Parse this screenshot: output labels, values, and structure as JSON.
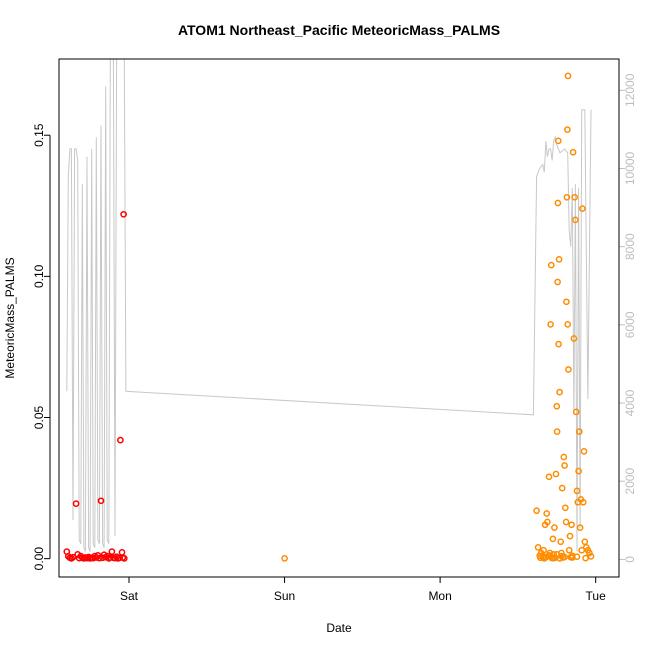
{
  "chart_data": {
    "type": "scatter",
    "title": "ATOM1 Northeast_Pacific MeteoricMass_PALMS",
    "xlabel": "Date",
    "ylabel": "MeteoricMass_PALMS",
    "x_ticks": [
      "Sat",
      "Sun",
      "Mon",
      "Tue"
    ],
    "x_range_days": [
      -0.45,
      3.15
    ],
    "ylim": [
      -0.0065,
      0.177
    ],
    "y_ticks": [
      "0.00",
      "0.05",
      "0.10",
      "0.15"
    ],
    "y_tick_values": [
      0,
      0.05,
      0.1,
      0.15
    ],
    "y2lim": [
      -450,
      12800
    ],
    "y2_ticks": [
      "0",
      "2000",
      "4000",
      "6000",
      "8000",
      "10000",
      "12000"
    ],
    "y2_tick_values": [
      0,
      2000,
      4000,
      6000,
      8000,
      10000,
      12000
    ],
    "grid": false,
    "series": [
      {
        "color": "#ff0000",
        "points": [
          [
            -0.4,
            0.0025
          ],
          [
            -0.39,
            0.0008
          ],
          [
            -0.38,
            0.0003
          ],
          [
            -0.37,
            0.0001
          ],
          [
            -0.36,
            0.0005
          ],
          [
            -0.34,
            0.0195
          ],
          [
            -0.33,
            0.0015
          ],
          [
            -0.32,
            0.0002
          ],
          [
            -0.31,
            0.0009
          ],
          [
            -0.3,
            0.0003
          ],
          [
            -0.29,
            0.0001
          ],
          [
            -0.28,
            0.0004
          ],
          [
            -0.27,
            0.0002
          ],
          [
            -0.26,
            0.0006
          ],
          [
            -0.25,
            0.0001
          ],
          [
            -0.24,
            0.0003
          ],
          [
            -0.23,
            0.0002
          ],
          [
            -0.22,
            0.0009
          ],
          [
            -0.21,
            0.0004
          ],
          [
            -0.2,
            0.0012
          ],
          [
            -0.19,
            0.0002
          ],
          [
            -0.18,
            0.0205
          ],
          [
            -0.17,
            0.0003
          ],
          [
            -0.16,
            0.0014
          ],
          [
            -0.15,
            0.0005
          ],
          [
            -0.14,
            0.0009
          ],
          [
            -0.13,
            0.0001
          ],
          [
            -0.12,
            0.0004
          ],
          [
            -0.11,
            0.0025
          ],
          [
            -0.1,
            0.0003
          ],
          [
            -0.09,
            0.0002
          ],
          [
            -0.08,
            0.0007
          ],
          [
            -0.07,
            0.0001
          ],
          [
            -0.06,
            0.0003
          ],
          [
            -0.055,
            0.042
          ],
          [
            -0.045,
            0.0022
          ],
          [
            -0.04,
            0.0004
          ],
          [
            -0.035,
            0.122
          ],
          [
            -0.03,
            0.0001
          ]
        ]
      },
      {
        "color": "#ff8c00",
        "points": [
          [
            1.0,
            0.0001
          ],
          [
            2.62,
            0.017
          ],
          [
            2.63,
            0.004
          ],
          [
            2.64,
            0.001
          ],
          [
            2.645,
            0.0003
          ],
          [
            2.65,
            0.002
          ],
          [
            2.66,
            0.0006
          ],
          [
            2.665,
            0.003
          ],
          [
            2.67,
            0.0001
          ],
          [
            2.675,
            0.012
          ],
          [
            2.68,
            0.0005
          ],
          [
            2.685,
            0.016
          ],
          [
            2.69,
            0.013
          ],
          [
            2.695,
            0.0009
          ],
          [
            2.7,
            0.029
          ],
          [
            2.705,
            0.002
          ],
          [
            2.71,
            0.083
          ],
          [
            2.715,
            0.104
          ],
          [
            2.72,
            0.0002
          ],
          [
            2.725,
            0.007
          ],
          [
            2.73,
            0.0015
          ],
          [
            2.735,
            0.011
          ],
          [
            2.74,
            0.0003
          ],
          [
            2.745,
            0.03
          ],
          [
            2.75,
            0.054
          ],
          [
            2.752,
            0.045
          ],
          [
            2.755,
            0.098
          ],
          [
            2.757,
            0.126
          ],
          [
            2.76,
            0.148
          ],
          [
            2.762,
            0.076
          ],
          [
            2.765,
            0.106
          ],
          [
            2.768,
            0.059
          ],
          [
            2.77,
            0.0001
          ],
          [
            2.775,
            0.006
          ],
          [
            2.78,
            0.002
          ],
          [
            2.785,
            0.025
          ],
          [
            2.79,
            0.0004
          ],
          [
            2.795,
            0.036
          ],
          [
            2.8,
            0.033
          ],
          [
            2.805,
            0.018
          ],
          [
            2.81,
            0.013
          ],
          [
            2.812,
            0.091
          ],
          [
            2.815,
            0.128
          ],
          [
            2.818,
            0.152
          ],
          [
            2.82,
            0.083
          ],
          [
            2.822,
            0.171
          ],
          [
            2.825,
            0.067
          ],
          [
            2.83,
            0.003
          ],
          [
            2.835,
            0.008
          ],
          [
            2.84,
            0.0005
          ],
          [
            2.845,
            0.012
          ],
          [
            2.85,
            0.001
          ],
          [
            2.855,
            0.144
          ],
          [
            2.86,
            0.078
          ],
          [
            2.865,
            0.128
          ],
          [
            2.87,
            0.12
          ],
          [
            2.875,
            0.052
          ],
          [
            2.88,
            0.024
          ],
          [
            2.885,
            0.02
          ],
          [
            2.89,
            0.031
          ],
          [
            2.895,
            0.045
          ],
          [
            2.9,
            0.011
          ],
          [
            2.905,
            0.021
          ],
          [
            2.91,
            0.003
          ],
          [
            2.915,
            0.124
          ],
          [
            2.92,
            0.02
          ],
          [
            2.925,
            0.038
          ],
          [
            2.93,
            0.006
          ],
          [
            2.935,
            0.0002
          ],
          [
            2.94,
            0.004
          ],
          [
            2.95,
            0.003
          ],
          [
            2.96,
            0.002
          ],
          [
            2.97,
            0.0008
          ],
          [
            2.75,
            0.0015
          ],
          [
            2.8,
            0.0006
          ],
          [
            2.85,
            0.0004
          ],
          [
            2.7,
            0.0012
          ],
          [
            2.66,
            0.0008
          ],
          [
            2.88,
            0.0007
          ],
          [
            2.73,
            0.0002
          ],
          [
            2.78,
            0.0009
          ]
        ]
      }
    ],
    "altitude_line": {
      "color": "#c8c8c8",
      "points": [
        [
          -0.4,
          4300
        ],
        [
          -0.39,
          9800
        ],
        [
          -0.38,
          10500
        ],
        [
          -0.37,
          10500
        ],
        [
          -0.36,
          1000
        ],
        [
          -0.35,
          10500
        ],
        [
          -0.34,
          10500
        ],
        [
          -0.33,
          10200
        ],
        [
          -0.32,
          500
        ],
        [
          -0.31,
          400
        ],
        [
          -0.3,
          9600
        ],
        [
          -0.29,
          300
        ],
        [
          -0.28,
          200
        ],
        [
          -0.27,
          10300
        ],
        [
          -0.26,
          300
        ],
        [
          -0.25,
          200
        ],
        [
          -0.24,
          10500
        ],
        [
          -0.23,
          400
        ],
        [
          -0.22,
          300
        ],
        [
          -0.21,
          10800
        ],
        [
          -0.2,
          500
        ],
        [
          -0.19,
          400
        ],
        [
          -0.18,
          11100
        ],
        [
          -0.17,
          400
        ],
        [
          -0.16,
          300
        ],
        [
          -0.15,
          12100
        ],
        [
          -0.14,
          500
        ],
        [
          -0.13,
          400
        ],
        [
          -0.12,
          12800
        ],
        [
          -0.11,
          12800
        ],
        [
          -0.1,
          12800
        ],
        [
          -0.09,
          600
        ],
        [
          -0.08,
          12800
        ],
        [
          -0.07,
          12800
        ],
        [
          -0.06,
          12800
        ],
        [
          -0.05,
          12800
        ],
        [
          -0.04,
          12800
        ],
        [
          -0.03,
          12800
        ],
        [
          -0.02,
          4300
        ],
        [
          2.6,
          3700
        ],
        [
          2.62,
          9800
        ],
        [
          2.64,
          10000
        ],
        [
          2.66,
          10100
        ],
        [
          2.67,
          9900
        ],
        [
          2.68,
          10700
        ],
        [
          2.69,
          10300
        ],
        [
          2.7,
          10500
        ],
        [
          2.71,
          10500
        ],
        [
          2.72,
          10200
        ],
        [
          2.73,
          10700
        ],
        [
          2.74,
          10800
        ],
        [
          2.75,
          10600
        ],
        [
          2.77,
          10400
        ],
        [
          2.8,
          10500
        ],
        [
          2.82,
          10400
        ],
        [
          2.83,
          8400
        ],
        [
          2.84,
          8000
        ],
        [
          2.85,
          9500
        ],
        [
          2.86,
          3700
        ],
        [
          2.87,
          9600
        ],
        [
          2.88,
          200
        ],
        [
          2.89,
          9500
        ],
        [
          2.9,
          800
        ],
        [
          2.91,
          11500
        ],
        [
          2.93,
          11500
        ],
        [
          2.95,
          4100
        ],
        [
          2.97,
          11500
        ]
      ]
    }
  }
}
